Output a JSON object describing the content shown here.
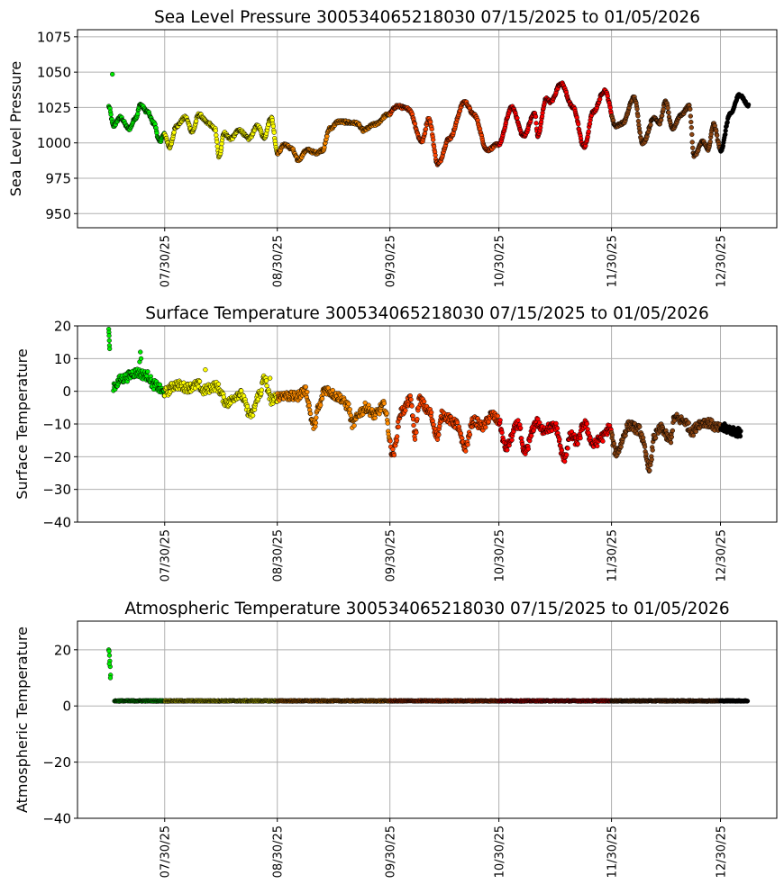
{
  "chart_data": [
    {
      "type": "scatter",
      "title": "Sea Level Pressure 300534065218030  07/15/2025 to 01/05/2026",
      "xlabel": "",
      "ylabel": "Sea Level Pressure",
      "x_units": "days since 07/15/2025",
      "xlim": [
        -9,
        183.5
      ],
      "ylim": [
        940,
        1080
      ],
      "grid": true,
      "yticks": [
        950,
        975,
        1000,
        1025,
        1050,
        1075
      ],
      "ytick_labels": [
        "950",
        "975",
        "1000",
        "1025",
        "1050",
        "1075"
      ],
      "xticks": [
        15,
        46,
        77,
        107,
        138,
        168
      ],
      "xtick_labels": [
        "07/30/25",
        "08/30/25",
        "09/30/25",
        "10/30/25",
        "11/30/25",
        "12/30/25"
      ],
      "color_bands": [
        {
          "from": -10,
          "to": 15,
          "color": "#00ee00"
        },
        {
          "from": 15,
          "to": 46,
          "color": "#ffff00"
        },
        {
          "from": 46,
          "to": 77,
          "color": "#ff8c00"
        },
        {
          "from": 77,
          "to": 107,
          "color": "#ff4500"
        },
        {
          "from": 107,
          "to": 138,
          "color": "#ff0000"
        },
        {
          "from": 138,
          "to": 168,
          "color": "#8b4513"
        },
        {
          "from": 168,
          "to": 200,
          "color": "#000000"
        }
      ],
      "noise": 1.0,
      "series": {
        "x": [
          -0.4,
          0.9,
          2.7,
          5.2,
          7.1,
          8.3,
          10.2,
          12,
          13.6,
          14.9,
          16.4,
          18.2,
          20.7,
          22.6,
          24.4,
          26.9,
          28.8,
          30,
          31.3,
          33.1,
          35.6,
          38.1,
          40.6,
          42.4,
          44.3,
          46.1,
          48,
          49.9,
          51.7,
          54.2,
          56.7,
          58.5,
          60.4,
          62.9,
          67.8,
          69.7,
          72.8,
          76.5,
          79,
          82.1,
          85.8,
          87.7,
          90.2,
          93.3,
          97.6,
          100.1,
          103.8,
          106.9,
          110.6,
          113.8,
          116.9,
          117.7,
          120,
          121.2,
          124.1,
          127.4,
          130.5,
          133,
          136.1,
          139.2,
          141.1,
          144.2,
          146.6,
          149.8,
          151.2,
          152.9,
          154.7,
          157.2,
          159.4,
          160.7,
          163.2,
          164.6,
          166.1,
          168.1,
          170.6,
          173.3,
          175.8
        ],
        "y": [
          1025.6,
          1012,
          1018,
          1010,
          1018,
          1027,
          1022,
          1014,
          1001,
          1006,
          997,
          1012,
          1018,
          1008,
          1020,
          1014,
          1010,
          990,
          1007,
          1003,
          1009,
          1003,
          1012,
          1004,
          1018,
          993,
          999,
          996,
          988,
          995,
          993,
          995,
          1010,
          1015,
          1014,
          1009,
          1013,
          1020,
          1026,
          1024,
          1001,
          1017,
          985,
          1003,
          1029,
          1020,
          995,
          999,
          1025,
          1005,
          1021,
          1005,
          1031,
          1029,
          1042,
          1025,
          997,
          1022,
          1037,
          1012,
          1014,
          1032,
          1000,
          1018,
          1014,
          1029,
          1010,
          1020,
          1026,
          991,
          1001,
          995,
          1013,
          995,
          1020,
          1034,
          1026
        ]
      },
      "outliers": {
        "x": [
          0.6
        ],
        "y": [
          1048.5
        ]
      }
    },
    {
      "type": "scatter",
      "title": "Surface Temperature 300534065218030  07/15/2025 to 01/05/2026",
      "xlabel": "",
      "ylabel": "Surface Temperature",
      "x_units": "days since 07/15/2025",
      "xlim": [
        -9,
        183.5
      ],
      "ylim": [
        -40,
        20
      ],
      "grid": true,
      "yticks": [
        -40,
        -30,
        -20,
        -10,
        0,
        10,
        20
      ],
      "ytick_labels": [
        "−40",
        "−30",
        "−20",
        "−10",
        "0",
        "10",
        "20"
      ],
      "xticks": [
        15,
        46,
        77,
        107,
        138,
        168
      ],
      "xtick_labels": [
        "07/30/25",
        "08/30/25",
        "09/30/25",
        "10/30/25",
        "11/30/25",
        "12/30/25"
      ],
      "color_bands": [
        {
          "from": -10,
          "to": 15,
          "color": "#00ee00"
        },
        {
          "from": 15,
          "to": 46,
          "color": "#ffff00"
        },
        {
          "from": 46,
          "to": 77,
          "color": "#ff8c00"
        },
        {
          "from": 77,
          "to": 107,
          "color": "#ff4500"
        },
        {
          "from": 107,
          "to": 138,
          "color": "#ff0000"
        },
        {
          "from": 138,
          "to": 168,
          "color": "#8b4513"
        },
        {
          "from": 168,
          "to": 200,
          "color": "#000000"
        }
      ],
      "noise": 1.4,
      "series": {
        "x": [
          0.9,
          3.4,
          7.1,
          10.2,
          12,
          15,
          18.2,
          21.3,
          24.4,
          25.4,
          29.1,
          32.2,
          35.6,
          38.8,
          41.2,
          42.4,
          44.3,
          47.4,
          51.1,
          53.6,
          56.1,
          57.3,
          59.1,
          62.9,
          65.4,
          66.7,
          69.1,
          70.3,
          72.8,
          75.3,
          77.8,
          80.2,
          82.7,
          83.9,
          85.1,
          87.7,
          90.2,
          91.4,
          95.2,
          97.6,
          100.1,
          102.6,
          105,
          106.9,
          108.8,
          112.5,
          113.8,
          117.5,
          118.7,
          122.5,
          124.9,
          126.8,
          128.6,
          130.5,
          133,
          135.5,
          137.4,
          139.2,
          143,
          145.5,
          148.6,
          149.8,
          151.7,
          154.1,
          155.4,
          157.8,
          160.3,
          162.1,
          163.9,
          167.7,
          168.9,
          173.6
        ],
        "y": [
          1.6,
          3.9,
          5.7,
          4.8,
          2,
          -0.3,
          2,
          1.1,
          2,
          0.2,
          1.6,
          -3.5,
          -0.7,
          -7.2,
          -0.7,
          3.9,
          -2.6,
          -1.2,
          -1.7,
          0.2,
          -10.4,
          -5.3,
          0.6,
          -1.7,
          -4.4,
          -9.9,
          -6.2,
          -4.9,
          -7.2,
          -4.4,
          -19,
          -6.2,
          -2.6,
          -13.6,
          -2.6,
          -6.2,
          -13.6,
          -7.2,
          -9.9,
          -17.2,
          -9,
          -10.8,
          -7.2,
          -9,
          -17.2,
          -9.9,
          -19,
          -9.4,
          -11.7,
          -10.8,
          -20.5,
          -13.6,
          -15.4,
          -9.9,
          -16.3,
          -14,
          -11.3,
          -18.6,
          -10.4,
          -11.7,
          -23.2,
          -13.6,
          -11.3,
          -15,
          -8.1,
          -9,
          -12.2,
          -9.9,
          -9.4,
          -11.3,
          -11.3,
          -12.7
        ]
      },
      "outliers": {
        "x": [
          -0.4,
          -0.35,
          -0.3,
          -0.25,
          -0.2,
          -0.15,
          8.1,
          8.3,
          8.5,
          26.2,
          44.0
        ],
        "y": [
          19,
          18,
          17,
          15.5,
          14,
          13,
          9,
          12,
          10,
          6.6,
          4
        ]
      }
    },
    {
      "type": "scatter",
      "title": "Atmospheric Temperature 300534065218030  07/15/2025 to 01/05/2026",
      "xlabel": "",
      "ylabel": "Atmospheric Temperature",
      "x_units": "days since 07/15/2025",
      "xlim": [
        -9,
        183.5
      ],
      "ylim": [
        -40,
        30.2
      ],
      "grid": true,
      "yticks": [
        -40,
        -20,
        0,
        20
      ],
      "ytick_labels": [
        "−40",
        "−20",
        "0",
        "20"
      ],
      "xticks": [
        15,
        46,
        77,
        107,
        138,
        168
      ],
      "xtick_labels": [
        "07/30/25",
        "08/30/25",
        "09/30/25",
        "10/30/25",
        "11/30/25",
        "12/30/25"
      ],
      "color_bands": [
        {
          "from": -10,
          "to": 15,
          "color": "#00ee00"
        },
        {
          "from": 15,
          "to": 46,
          "color": "#ffff00"
        },
        {
          "from": 46,
          "to": 77,
          "color": "#ff8c00"
        },
        {
          "from": 77,
          "to": 107,
          "color": "#ff4500"
        },
        {
          "from": 107,
          "to": 138,
          "color": "#ff0000"
        },
        {
          "from": 138,
          "to": 168,
          "color": "#8b4513"
        },
        {
          "from": 168,
          "to": 200,
          "color": "#000000"
        }
      ],
      "noise": 0.15,
      "series": {
        "x": [
          1.2,
          175.5
        ],
        "y": [
          1.8,
          1.8
        ]
      },
      "outliers": {
        "x": [
          -0.4,
          -0.3,
          -0.2,
          -0.1,
          0.0,
          0.1,
          -0.25,
          0.05
        ],
        "y": [
          20,
          19.5,
          18,
          16,
          14,
          11,
          15,
          10
        ]
      }
    }
  ]
}
